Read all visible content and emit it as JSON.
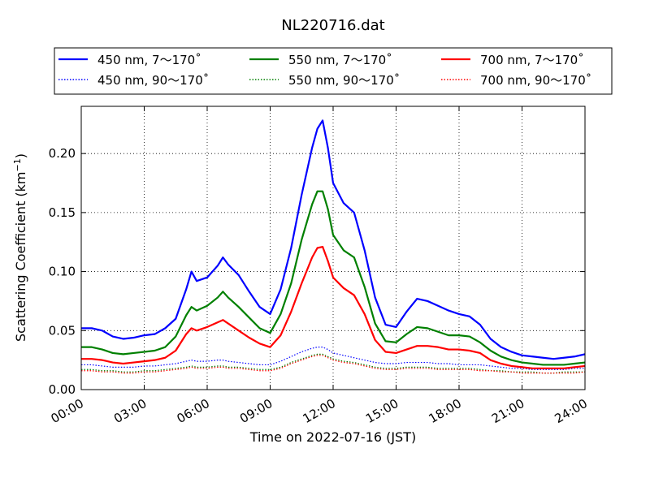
{
  "chart_data": {
    "type": "line",
    "title": "NL220716.dat",
    "xlabel": "Time on 2022-07-16 (JST)",
    "ylabel_main": "Scattering Coefficient (km",
    "ylabel_sup": "−1",
    "ylabel_end": ")",
    "xlim": [
      0,
      24
    ],
    "ylim": [
      0,
      0.24
    ],
    "grid": true,
    "legend_position": "top",
    "x_ticks": [
      {
        "value": 0,
        "label": "00:00"
      },
      {
        "value": 3,
        "label": "03:00"
      },
      {
        "value": 6,
        "label": "06:00"
      },
      {
        "value": 9,
        "label": "09:00"
      },
      {
        "value": 12,
        "label": "12:00"
      },
      {
        "value": 15,
        "label": "15:00"
      },
      {
        "value": 18,
        "label": "18:00"
      },
      {
        "value": 21,
        "label": "21:00"
      },
      {
        "value": 24,
        "label": "24:00"
      }
    ],
    "y_ticks": [
      {
        "value": 0.0,
        "label": "0.00"
      },
      {
        "value": 0.05,
        "label": "0.05"
      },
      {
        "value": 0.1,
        "label": "0.10"
      },
      {
        "value": 0.15,
        "label": "0.15"
      },
      {
        "value": 0.2,
        "label": "0.20"
      }
    ],
    "x": [
      0,
      0.5,
      1,
      1.5,
      2,
      2.5,
      3,
      3.5,
      4,
      4.5,
      5,
      5.25,
      5.5,
      6,
      6.5,
      6.75,
      7,
      7.5,
      8,
      8.5,
      9,
      9.5,
      10,
      10.5,
      11,
      11.25,
      11.5,
      11.75,
      12,
      12.5,
      13,
      13.5,
      14,
      14.5,
      15,
      15.5,
      16,
      16.5,
      17,
      17.5,
      18,
      18.5,
      19,
      19.5,
      20,
      20.5,
      21,
      21.5,
      22,
      22.5,
      23,
      23.5,
      24
    ],
    "series": [
      {
        "name": "450 nm, 7～170˚",
        "color": "#0000ff",
        "style": "solid",
        "values": [
          0.052,
          0.052,
          0.05,
          0.045,
          0.043,
          0.044,
          0.046,
          0.047,
          0.052,
          0.06,
          0.085,
          0.1,
          0.092,
          0.095,
          0.105,
          0.112,
          0.106,
          0.097,
          0.083,
          0.07,
          0.064,
          0.085,
          0.12,
          0.165,
          0.205,
          0.221,
          0.228,
          0.205,
          0.175,
          0.158,
          0.15,
          0.118,
          0.078,
          0.055,
          0.053,
          0.066,
          0.077,
          0.075,
          0.071,
          0.067,
          0.064,
          0.062,
          0.055,
          0.043,
          0.036,
          0.032,
          0.029,
          0.028,
          0.027,
          0.026,
          0.027,
          0.028,
          0.03
        ]
      },
      {
        "name": "550 nm, 7～170˚",
        "color": "#008000",
        "style": "solid",
        "values": [
          0.036,
          0.036,
          0.034,
          0.031,
          0.03,
          0.031,
          0.032,
          0.033,
          0.036,
          0.045,
          0.063,
          0.07,
          0.067,
          0.071,
          0.078,
          0.083,
          0.078,
          0.07,
          0.061,
          0.052,
          0.048,
          0.064,
          0.09,
          0.127,
          0.157,
          0.168,
          0.168,
          0.153,
          0.131,
          0.118,
          0.112,
          0.087,
          0.056,
          0.041,
          0.04,
          0.047,
          0.053,
          0.052,
          0.049,
          0.046,
          0.046,
          0.045,
          0.04,
          0.033,
          0.028,
          0.025,
          0.023,
          0.022,
          0.021,
          0.021,
          0.021,
          0.022,
          0.023
        ]
      },
      {
        "name": "700 nm, 7～170˚",
        "color": "#ff0000",
        "style": "solid",
        "values": [
          0.026,
          0.026,
          0.025,
          0.023,
          0.022,
          0.023,
          0.024,
          0.025,
          0.027,
          0.033,
          0.047,
          0.052,
          0.05,
          0.053,
          0.057,
          0.059,
          0.056,
          0.05,
          0.044,
          0.039,
          0.036,
          0.046,
          0.066,
          0.09,
          0.112,
          0.12,
          0.121,
          0.109,
          0.095,
          0.086,
          0.08,
          0.064,
          0.042,
          0.032,
          0.031,
          0.034,
          0.037,
          0.037,
          0.036,
          0.034,
          0.034,
          0.033,
          0.031,
          0.025,
          0.022,
          0.02,
          0.019,
          0.018,
          0.018,
          0.018,
          0.018,
          0.019,
          0.02
        ]
      },
      {
        "name": "450 nm, 90～170˚",
        "color": "#0000ff",
        "style": "dotted",
        "values": [
          0.021,
          0.021,
          0.02,
          0.019,
          0.019,
          0.019,
          0.02,
          0.02,
          0.021,
          0.022,
          0.024,
          0.025,
          0.024,
          0.024,
          0.025,
          0.025,
          0.024,
          0.023,
          0.022,
          0.021,
          0.021,
          0.024,
          0.028,
          0.032,
          0.035,
          0.036,
          0.036,
          0.034,
          0.031,
          0.029,
          0.027,
          0.025,
          0.023,
          0.022,
          0.022,
          0.023,
          0.023,
          0.023,
          0.022,
          0.022,
          0.021,
          0.021,
          0.021,
          0.02,
          0.019,
          0.018,
          0.018,
          0.017,
          0.017,
          0.017,
          0.017,
          0.018,
          0.018
        ]
      },
      {
        "name": "550 nm, 90～170˚",
        "color": "#008000",
        "style": "dotted",
        "values": [
          0.017,
          0.017,
          0.016,
          0.016,
          0.015,
          0.015,
          0.016,
          0.016,
          0.017,
          0.018,
          0.019,
          0.02,
          0.019,
          0.019,
          0.02,
          0.02,
          0.019,
          0.019,
          0.018,
          0.017,
          0.017,
          0.019,
          0.023,
          0.026,
          0.029,
          0.03,
          0.03,
          0.028,
          0.026,
          0.024,
          0.023,
          0.021,
          0.019,
          0.018,
          0.018,
          0.019,
          0.019,
          0.019,
          0.018,
          0.018,
          0.018,
          0.018,
          0.017,
          0.016,
          0.016,
          0.015,
          0.015,
          0.015,
          0.014,
          0.014,
          0.015,
          0.015,
          0.015
        ]
      },
      {
        "name": "700 nm, 90～170˚",
        "color": "#ff0000",
        "style": "dotted",
        "values": [
          0.016,
          0.016,
          0.015,
          0.015,
          0.014,
          0.014,
          0.015,
          0.015,
          0.016,
          0.017,
          0.018,
          0.019,
          0.018,
          0.018,
          0.019,
          0.019,
          0.018,
          0.018,
          0.017,
          0.016,
          0.016,
          0.018,
          0.022,
          0.025,
          0.028,
          0.029,
          0.029,
          0.027,
          0.025,
          0.023,
          0.022,
          0.02,
          0.018,
          0.017,
          0.017,
          0.018,
          0.018,
          0.018,
          0.017,
          0.017,
          0.017,
          0.017,
          0.016,
          0.016,
          0.015,
          0.015,
          0.014,
          0.014,
          0.014,
          0.014,
          0.014,
          0.014,
          0.015
        ]
      }
    ]
  }
}
